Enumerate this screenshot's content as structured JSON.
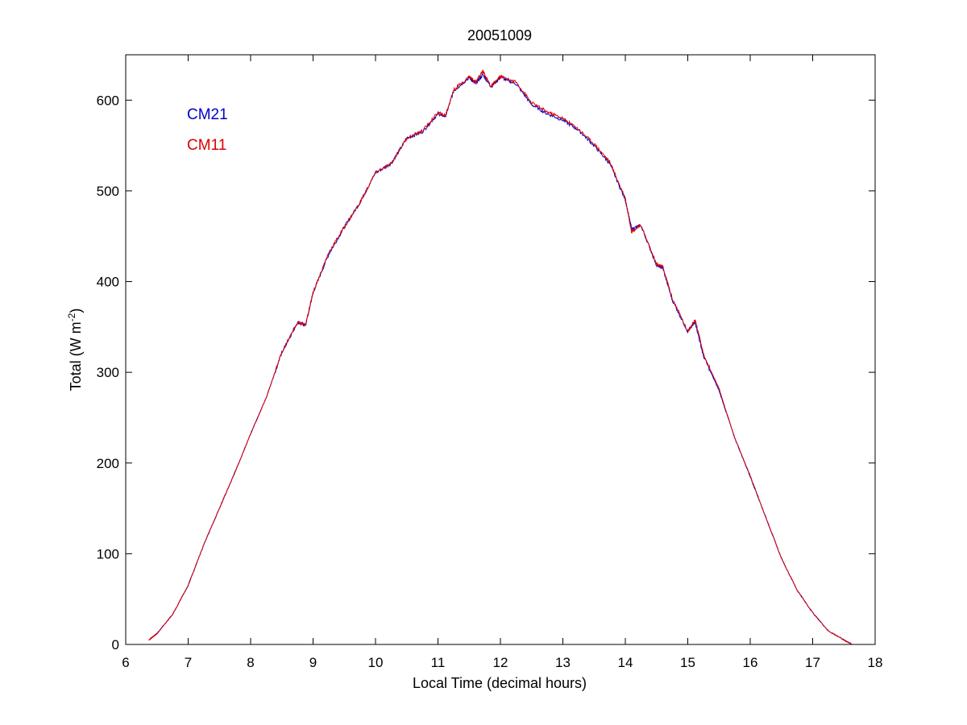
{
  "chart_data": {
    "type": "line",
    "title": "20051009",
    "xlabel": "Local Time (decimal hours)",
    "ylabel": {
      "base": "Total (W m",
      "sup": "-2",
      "close": ")"
    },
    "xlim": [
      6,
      18
    ],
    "ylim": [
      0,
      650
    ],
    "xticks": [
      "6",
      "7",
      "8",
      "9",
      "10",
      "11",
      "12",
      "13",
      "14",
      "15",
      "16",
      "17",
      "18"
    ],
    "yticks": [
      "0",
      "100",
      "200",
      "300",
      "400",
      "500",
      "600"
    ],
    "grid": false,
    "legend_position": "top-left",
    "series": [
      {
        "name": "CM21",
        "color": "#0000cc",
        "x": [
          6.37,
          6.5,
          6.75,
          7.0,
          7.25,
          7.5,
          7.75,
          8.0,
          8.25,
          8.5,
          8.75,
          8.88,
          9.0,
          9.25,
          9.5,
          9.75,
          10.0,
          10.25,
          10.5,
          10.75,
          11.0,
          11.12,
          11.25,
          11.5,
          11.6,
          11.72,
          11.85,
          12.0,
          12.25,
          12.5,
          12.75,
          13.0,
          13.25,
          13.5,
          13.75,
          14.0,
          14.1,
          14.25,
          14.5,
          14.6,
          14.75,
          15.0,
          15.12,
          15.25,
          15.5,
          15.75,
          16.0,
          16.25,
          16.5,
          16.75,
          17.0,
          17.25,
          17.5,
          17.63
        ],
        "y": [
          5,
          12,
          33,
          65,
          110,
          150,
          190,
          232,
          272,
          322,
          355,
          352,
          388,
          430,
          460,
          487,
          520,
          530,
          558,
          565,
          585,
          582,
          610,
          625,
          618,
          628,
          615,
          625,
          618,
          595,
          585,
          578,
          567,
          550,
          530,
          490,
          458,
          462,
          418,
          415,
          380,
          345,
          355,
          318,
          280,
          228,
          185,
          140,
          95,
          60,
          35,
          15,
          5,
          0
        ]
      },
      {
        "name": "CM11",
        "color": "#dd0000",
        "x": [
          6.37,
          6.5,
          6.75,
          7.0,
          7.25,
          7.5,
          7.75,
          8.0,
          8.25,
          8.5,
          8.75,
          8.88,
          9.0,
          9.25,
          9.5,
          9.75,
          10.0,
          10.25,
          10.5,
          10.75,
          11.0,
          11.12,
          11.25,
          11.5,
          11.6,
          11.72,
          11.85,
          12.0,
          12.25,
          12.5,
          12.75,
          13.0,
          13.25,
          13.5,
          13.75,
          14.0,
          14.1,
          14.25,
          14.5,
          14.6,
          14.75,
          15.0,
          15.12,
          15.25,
          15.5,
          15.75,
          16.0,
          16.25,
          16.5,
          16.75,
          17.0,
          17.25,
          17.5,
          17.63
        ],
        "y": [
          5,
          12,
          33,
          65,
          110,
          150,
          190,
          232,
          272,
          322,
          355,
          352,
          388,
          432,
          460,
          487,
          520,
          530,
          558,
          566,
          586,
          583,
          611,
          626,
          620,
          632,
          615,
          626,
          620,
          597,
          587,
          580,
          568,
          552,
          532,
          492,
          455,
          462,
          419,
          416,
          382,
          345,
          358,
          320,
          282,
          228,
          186,
          140,
          95,
          60,
          35,
          15,
          5,
          0
        ]
      }
    ]
  }
}
